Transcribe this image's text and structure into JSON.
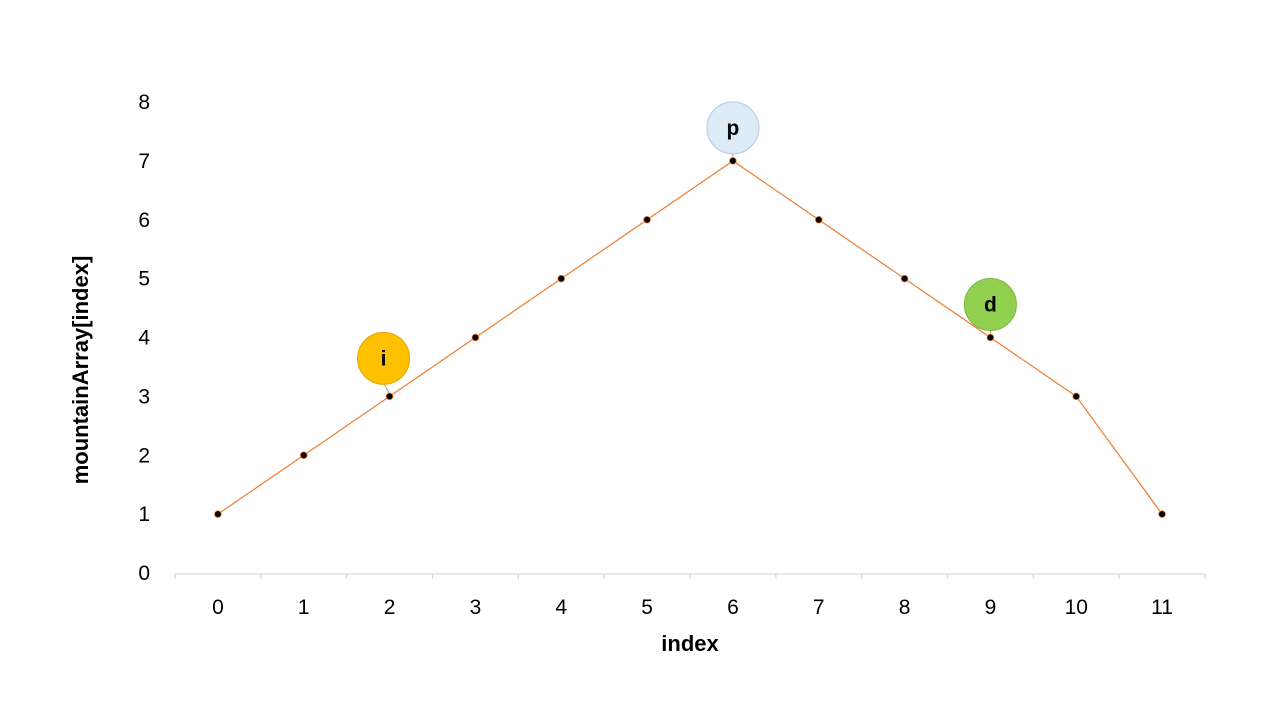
{
  "chart_data": {
    "type": "line",
    "title": "",
    "xlabel": "index",
    "ylabel": "mountainArray[index]",
    "x": [
      0,
      1,
      2,
      3,
      4,
      5,
      6,
      7,
      8,
      9,
      10,
      11
    ],
    "categories": [
      "0",
      "1",
      "2",
      "3",
      "4",
      "5",
      "6",
      "7",
      "8",
      "9",
      "10",
      "11"
    ],
    "series": [
      {
        "values": [
          1,
          2,
          3,
          4,
          5,
          6,
          7,
          6,
          5,
          4,
          3,
          1
        ],
        "color": "#ED7D31",
        "marker_color": "#000000"
      }
    ],
    "ylim": [
      0,
      8
    ],
    "yticks": [
      0,
      1,
      2,
      3,
      4,
      5,
      6,
      7,
      8
    ],
    "grid": false,
    "legend": "none",
    "annotations": [
      {
        "label": "i",
        "x": 2,
        "y": 3,
        "color": "#FFC000",
        "border": "#E0A800"
      },
      {
        "label": "p",
        "x": 6,
        "y": 7,
        "color": "#DDEBF7",
        "border": "#B4C7E7"
      },
      {
        "label": "d",
        "x": 9,
        "y": 4,
        "color": "#92D050",
        "border": "#7AB83E"
      }
    ]
  }
}
